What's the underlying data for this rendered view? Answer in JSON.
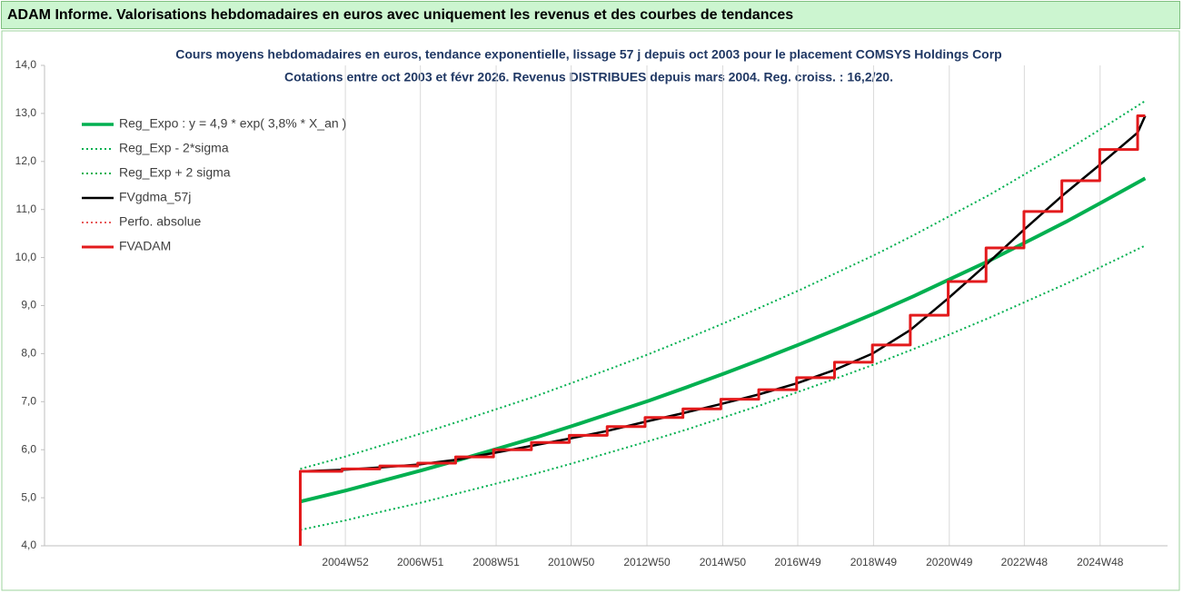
{
  "header": {
    "title": "ADAM Informe. Valorisations hebdomadaires en euros avec uniquement les revenus et des courbes de tendances"
  },
  "chart_data": {
    "type": "line",
    "title": "Cours moyens hebdomadaires en euros, tendance exponentielle, lissage 57 j depuis oct 2003 pour le placement COMSYS Holdings Corp",
    "subtitle": "Cotations entre oct 2003 et févr 2026. Revenus DISTRIBUES depuis mars 2004. Reg. croiss. : 16,2/20.",
    "xlim": [
      1997.05,
      2026.69
    ],
    "ylim": [
      4,
      14
    ],
    "xticks": [
      {
        "value": 2004.99,
        "label": "2004W52"
      },
      {
        "value": 2006.97,
        "label": "2006W51"
      },
      {
        "value": 2008.97,
        "label": "2008W51"
      },
      {
        "value": 2010.95,
        "label": "2010W50"
      },
      {
        "value": 2012.95,
        "label": "2012W50"
      },
      {
        "value": 2014.95,
        "label": "2014W50"
      },
      {
        "value": 2016.93,
        "label": "2016W49"
      },
      {
        "value": 2018.93,
        "label": "2018W49"
      },
      {
        "value": 2020.93,
        "label": "2020W49"
      },
      {
        "value": 2022.91,
        "label": "2022W48"
      },
      {
        "value": 2024.91,
        "label": "2024W48"
      }
    ],
    "yticks": [
      {
        "value": 14,
        "label": "14,0"
      },
      {
        "value": 13,
        "label": "13,0"
      },
      {
        "value": 12,
        "label": "12,0"
      },
      {
        "value": 11,
        "label": "11,0"
      },
      {
        "value": 10,
        "label": "10,0"
      },
      {
        "value": 9,
        "label": "9,0"
      },
      {
        "value": 8,
        "label": "8,0"
      },
      {
        "value": 7,
        "label": "7,0"
      },
      {
        "value": 6,
        "label": "6,0"
      },
      {
        "value": 5,
        "label": "5,0"
      },
      {
        "value": 4,
        "label": "4,0"
      }
    ],
    "grid": "x",
    "legend": "upper left",
    "series": [
      {
        "name": "Reg_Expo : y = 4,9 * exp( 3,8% *  X_an )",
        "color": "#00b050",
        "width": 4,
        "dash": "solid",
        "x": [
          2003.8,
          2005,
          2006,
          2007,
          2008,
          2009,
          2010,
          2011,
          2012,
          2013,
          2014,
          2015,
          2016,
          2017,
          2018,
          2019,
          2020,
          2021,
          2022,
          2023,
          2024,
          2025,
          2026.1
        ],
        "values": [
          4.92,
          5.15,
          5.36,
          5.57,
          5.79,
          6.02,
          6.25,
          6.5,
          6.76,
          7.02,
          7.3,
          7.59,
          7.89,
          8.2,
          8.52,
          8.85,
          9.2,
          9.57,
          9.94,
          10.34,
          10.74,
          11.17,
          11.65
        ]
      },
      {
        "name": "Reg_Exp - 2*sigma",
        "color": "#00b050",
        "width": 2,
        "dash": "dot",
        "x": [
          2003.8,
          2005,
          2006,
          2007,
          2008,
          2009,
          2010,
          2011,
          2012,
          2013,
          2014,
          2015,
          2016,
          2017,
          2018,
          2019,
          2020,
          2021,
          2022,
          2023,
          2024,
          2025,
          2026.1
        ],
        "values": [
          4.33,
          4.53,
          4.72,
          4.9,
          5.1,
          5.3,
          5.5,
          5.72,
          5.95,
          6.18,
          6.42,
          6.68,
          6.94,
          7.22,
          7.5,
          7.79,
          8.1,
          8.42,
          8.75,
          9.1,
          9.45,
          9.83,
          10.25
        ]
      },
      {
        "name": "Reg_Exp + 2 sigma",
        "color": "#00b050",
        "width": 2,
        "dash": "dot",
        "x": [
          2003.8,
          2005,
          2006,
          2007,
          2008,
          2009,
          2010,
          2011,
          2012,
          2013,
          2014,
          2015,
          2016,
          2017,
          2018,
          2019,
          2020,
          2021,
          2022,
          2023,
          2024,
          2025,
          2026.1
        ],
        "values": [
          5.6,
          5.86,
          6.1,
          6.34,
          6.59,
          6.85,
          7.11,
          7.4,
          7.69,
          7.99,
          8.31,
          8.64,
          8.98,
          9.33,
          9.7,
          10.07,
          10.47,
          10.89,
          11.31,
          11.77,
          12.22,
          12.71,
          13.26
        ]
      },
      {
        "name": "FVgdma_57j",
        "color": "#000000",
        "width": 2.5,
        "dash": "solid",
        "x": [
          2003.8,
          2004.9,
          2005.9,
          2006.9,
          2007.9,
          2008.9,
          2009.9,
          2010.9,
          2011.9,
          2012.9,
          2013.9,
          2014.9,
          2015.9,
          2016.9,
          2017.9,
          2018.9,
          2019.9,
          2020.9,
          2021.9,
          2022.9,
          2023.9,
          2024.9,
          2025.9,
          2026.1
        ],
        "values": [
          5.55,
          5.58,
          5.63,
          5.69,
          5.79,
          5.93,
          6.08,
          6.23,
          6.39,
          6.58,
          6.76,
          6.95,
          7.15,
          7.38,
          7.66,
          8.0,
          8.49,
          9.15,
          9.85,
          10.58,
          11.28,
          11.93,
          12.6,
          12.95
        ]
      },
      {
        "name": "Perfo. absolue",
        "color": "#e02020",
        "width": 1.5,
        "dash": "dot",
        "x": [],
        "values": []
      },
      {
        "name": "FVADAM",
        "color": "#e31a1c",
        "width": 3,
        "dash": "solid",
        "x": [
          2003.8,
          2003.8,
          2004.9,
          2004.9,
          2005.9,
          2005.9,
          2006.9,
          2006.9,
          2007.9,
          2007.9,
          2008.9,
          2008.9,
          2009.9,
          2009.9,
          2010.9,
          2010.9,
          2011.9,
          2011.9,
          2012.9,
          2012.9,
          2013.9,
          2013.9,
          2014.9,
          2014.9,
          2015.9,
          2015.9,
          2016.9,
          2016.9,
          2017.9,
          2017.9,
          2018.9,
          2018.9,
          2019.9,
          2019.9,
          2020.9,
          2020.9,
          2021.9,
          2021.9,
          2022.9,
          2022.9,
          2023.9,
          2023.9,
          2024.9,
          2024.9,
          2025.9,
          2025.9,
          2026.1
        ],
        "values": [
          4.0,
          5.55,
          5.55,
          5.6,
          5.6,
          5.66,
          5.66,
          5.72,
          5.72,
          5.85,
          5.85,
          6.0,
          6.0,
          6.15,
          6.15,
          6.3,
          6.3,
          6.48,
          6.48,
          6.67,
          6.67,
          6.85,
          6.85,
          7.05,
          7.05,
          7.25,
          7.25,
          7.5,
          7.5,
          7.82,
          7.82,
          8.18,
          8.18,
          8.8,
          8.8,
          9.5,
          9.5,
          10.2,
          10.2,
          10.96,
          10.96,
          11.6,
          11.6,
          12.25,
          12.25,
          12.95,
          12.95
        ]
      }
    ]
  }
}
